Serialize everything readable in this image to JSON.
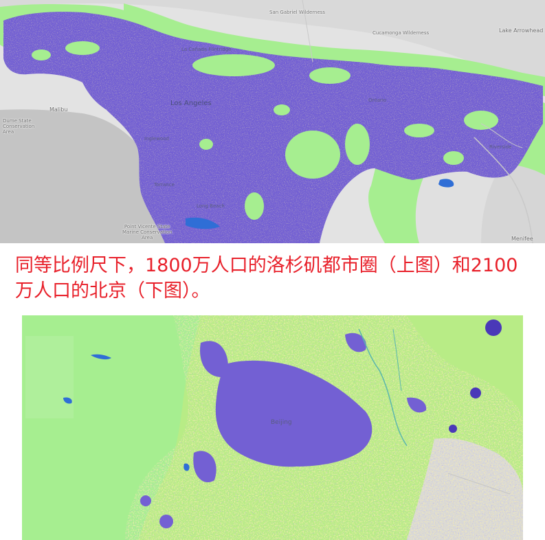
{
  "caption": "同等比例尺下，1800万人口的洛杉矶都市圈（上图）和2100万人口的北京（下图）。",
  "colors": {
    "caption": "#e8202a",
    "high_density": "#7360d3",
    "medium_density": "#f2dc6e",
    "low_density": "#b8ec86",
    "open_land": "#a6ee90",
    "ocean": "#c4c4c4",
    "water": "#2f6ed6",
    "basemap": "#e3e3e3"
  },
  "la_map": {
    "labels": {
      "san_gabriel": "San Gabriel Wilderness",
      "cucamonga": "Cucamonga Wilderness",
      "lake_arrowhead": "Lake Arrowhead",
      "malibu": "Malibu",
      "dume": "Dume State\nConservation\nArea",
      "los_angeles": "Los Angeles",
      "inglewood": "Inglewood",
      "torrance": "Torrance",
      "long_beach": "Long Beach",
      "point_vicente": "Point Vicente State\nMarine Conservation\nArea",
      "menifee": "Menifee",
      "ontario": "Ontario",
      "riverside": "Riverside",
      "la_canada": "La Cañada Flintridge"
    }
  },
  "bj_map": {
    "labels": {
      "beijing": "Beijing"
    }
  }
}
